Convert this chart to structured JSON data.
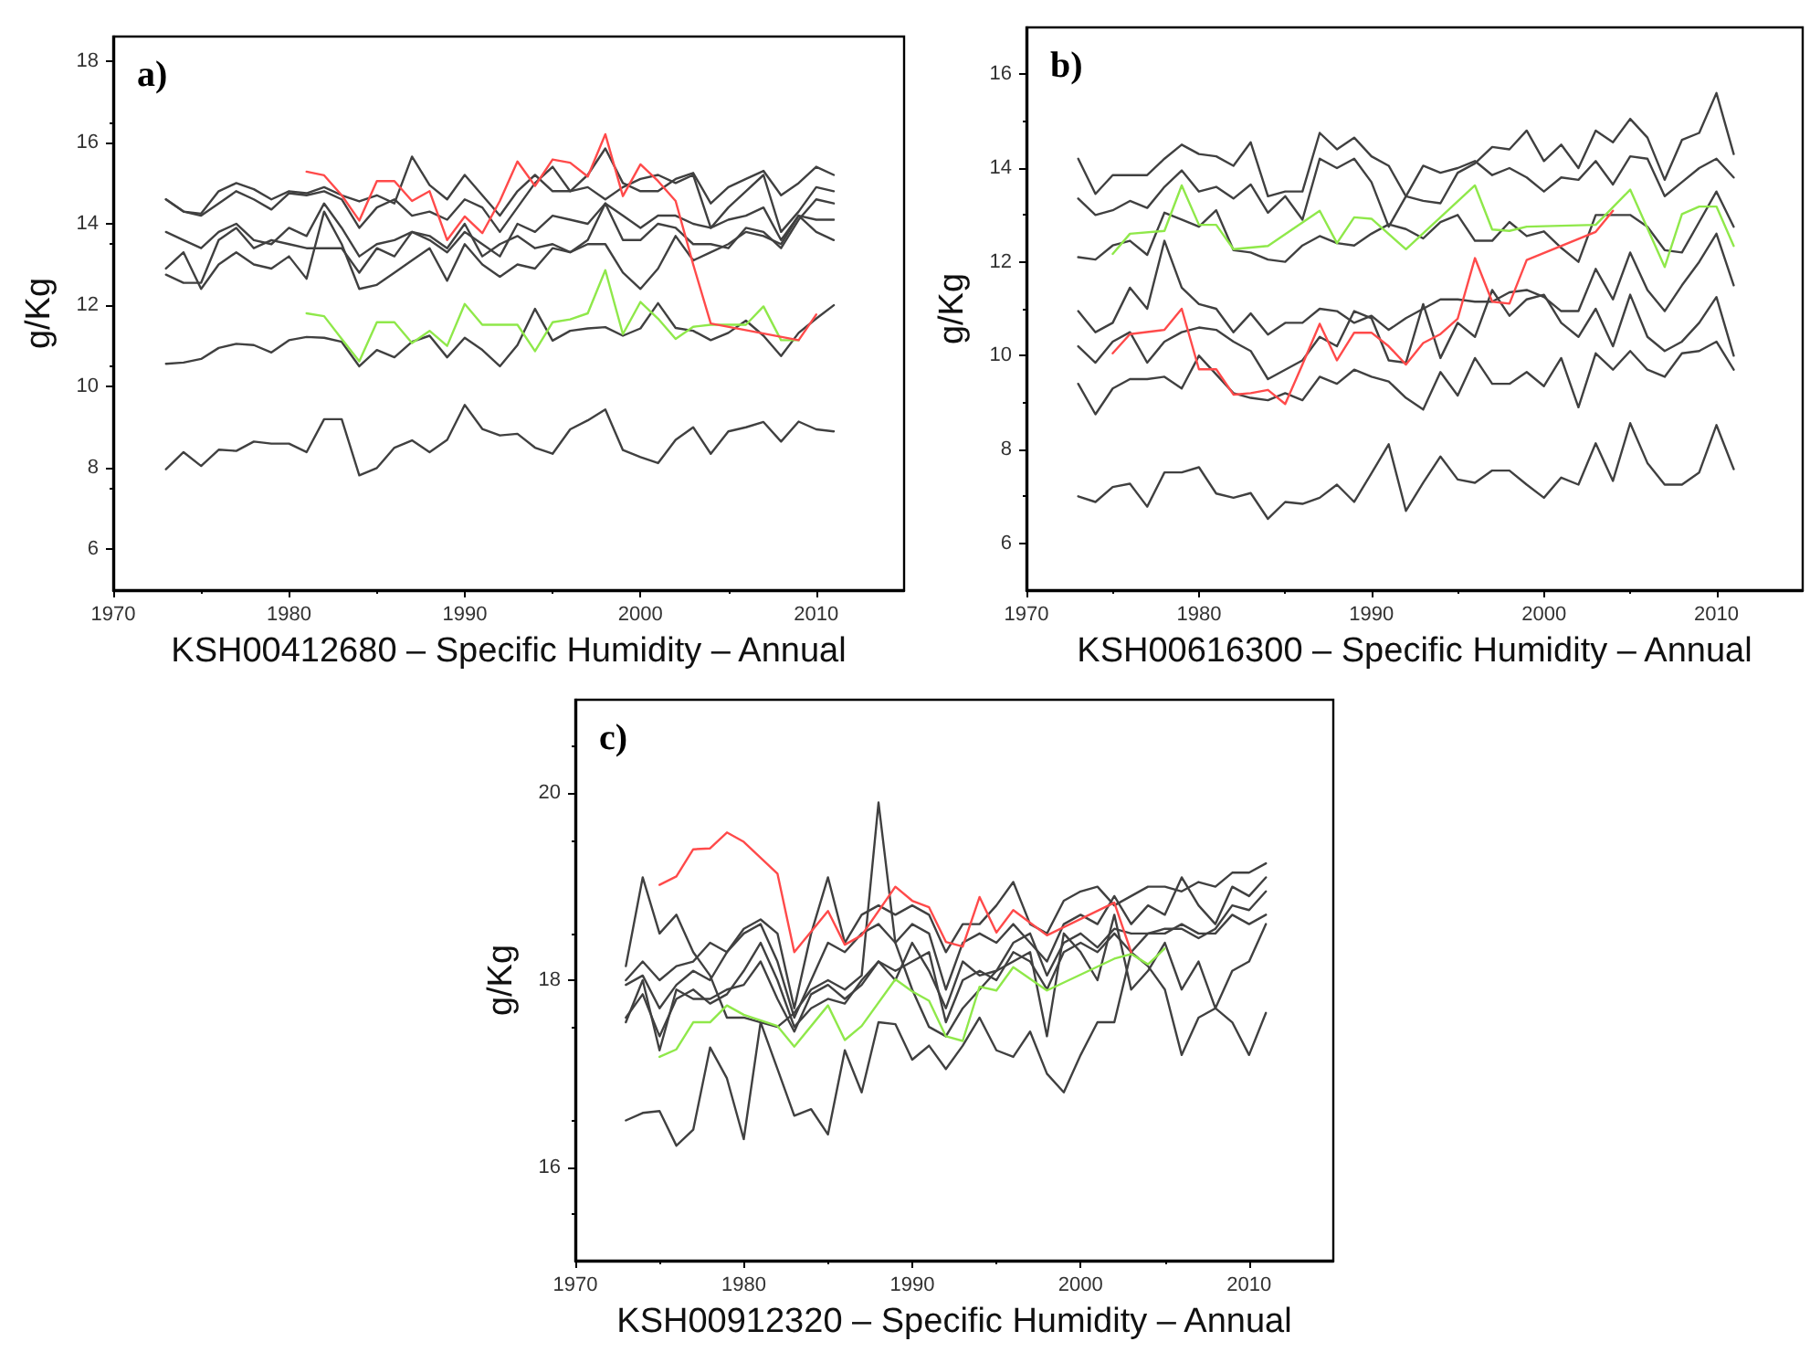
{
  "chart_data": [
    {
      "type": "line",
      "title": "a)",
      "xlabel": "KSH00412680 – Specific Humidity – Annual",
      "ylabel": "g/Kg",
      "xlim": [
        1970,
        2015
      ],
      "xticks": [
        1970,
        1980,
        1990,
        2000,
        2010
      ],
      "ylim": [
        5,
        18.6
      ],
      "yticks": [
        6,
        8,
        10,
        12,
        14,
        16,
        18
      ],
      "grid": false,
      "marker": "none",
      "line_style": "solid",
      "x": [
        1973,
        1974,
        1975,
        1976,
        1977,
        1978,
        1979,
        1980,
        1981,
        1982,
        1983,
        1984,
        1985,
        1986,
        1987,
        1988,
        1989,
        1990,
        1991,
        1992,
        1993,
        1994,
        1995,
        1996,
        1997,
        1998,
        1999,
        2000,
        2001,
        2002,
        2003,
        2004,
        2005,
        2006,
        2007,
        2008,
        2009,
        2010,
        2011
      ],
      "series": [
        {
          "color": "#404040",
          "values": [
            7.97,
            8.39,
            8.05,
            8.45,
            8.42,
            8.65,
            8.6,
            8.6,
            8.39,
            9.2,
            9.2,
            7.82,
            8.0,
            8.5,
            8.68,
            8.39,
            8.69,
            9.55,
            8.96,
            8.8,
            8.84,
            8.5,
            8.35,
            8.95,
            9.17,
            9.44,
            8.44,
            8.27,
            8.12,
            8.69,
            9.0,
            8.35,
            8.9,
            9.0,
            9.13,
            8.65,
            9.14,
            8.95,
            8.9
          ]
        },
        {
          "color": "#404040",
          "values": [
            10.56,
            10.59,
            10.68,
            10.95,
            11.05,
            11.02,
            10.84,
            11.14,
            11.22,
            11.2,
            11.1,
            10.5,
            10.9,
            10.72,
            11.1,
            11.25,
            10.72,
            11.2,
            10.9,
            10.5,
            11.02,
            11.91,
            11.13,
            11.37,
            11.43,
            11.46,
            11.25,
            11.43,
            12.05,
            11.44,
            11.37,
            11.14,
            11.32,
            11.62,
            11.25,
            10.75,
            11.32,
            11.67,
            12.0
          ]
        },
        {
          "color": "#404040",
          "values": [
            14.6,
            14.3,
            14.25,
            14.8,
            15.0,
            14.85,
            14.6,
            14.8,
            14.75,
            14.9,
            14.7,
            14.55,
            14.7,
            14.5,
            15.65,
            14.95,
            14.6,
            15.2,
            14.7,
            14.2,
            14.8,
            15.2,
            14.8,
            14.8,
            15.2,
            15.85,
            15.0,
            14.8,
            14.8,
            15.1,
            15.25,
            14.5,
            14.9,
            15.1,
            15.3,
            14.7,
            15.0,
            15.4,
            15.2
          ]
        },
        {
          "color": "#404040",
          "values": [
            14.6,
            14.3,
            14.2,
            14.5,
            14.8,
            14.6,
            14.35,
            14.75,
            14.7,
            14.8,
            14.6,
            13.9,
            14.4,
            14.6,
            14.2,
            14.3,
            14.1,
            14.6,
            14.4,
            13.8,
            14.4,
            15.0,
            15.4,
            14.8,
            14.9,
            14.6,
            14.9,
            15.1,
            15.2,
            15.0,
            15.2,
            13.9,
            14.4,
            14.8,
            15.2,
            13.8,
            14.3,
            14.9,
            14.8
          ]
        },
        {
          "color": "#404040",
          "values": [
            13.8,
            13.6,
            13.4,
            13.8,
            14.0,
            13.6,
            13.5,
            13.9,
            13.7,
            14.5,
            13.9,
            13.2,
            13.5,
            13.6,
            13.8,
            13.6,
            13.3,
            13.8,
            13.5,
            13.2,
            14.0,
            13.8,
            14.2,
            14.1,
            14.0,
            14.5,
            14.2,
            13.9,
            14.2,
            14.2,
            14.0,
            13.9,
            14.1,
            14.2,
            14.4,
            13.6,
            14.2,
            14.1,
            14.1
          ]
        },
        {
          "color": "#404040",
          "values": [
            12.9,
            13.3,
            12.4,
            13.0,
            13.3,
            13.0,
            12.9,
            13.2,
            12.65,
            14.3,
            13.5,
            12.4,
            12.5,
            12.8,
            13.1,
            13.4,
            12.6,
            13.5,
            13.0,
            12.7,
            13.0,
            12.9,
            13.4,
            13.3,
            13.5,
            13.5,
            12.8,
            12.4,
            12.9,
            13.7,
            13.1,
            13.3,
            13.5,
            13.8,
            13.7,
            13.5,
            14.2,
            13.8,
            13.6
          ]
        },
        {
          "color": "#404040",
          "values": [
            12.75,
            12.55,
            12.55,
            13.6,
            13.9,
            13.4,
            13.6,
            13.5,
            13.4,
            13.4,
            13.4,
            12.8,
            13.4,
            13.2,
            13.8,
            13.7,
            13.4,
            14.0,
            13.2,
            13.5,
            13.7,
            13.4,
            13.5,
            13.3,
            13.6,
            14.5,
            13.6,
            13.6,
            14.0,
            13.9,
            13.5,
            13.5,
            13.4,
            13.9,
            13.8,
            13.4,
            14.1,
            14.6,
            14.5
          ]
        },
        {
          "color": "#8fe84a",
          "values": [
            null,
            null,
            null,
            null,
            null,
            null,
            null,
            null,
            11.8,
            11.73,
            11.17,
            10.62,
            11.58,
            11.58,
            11.07,
            11.37,
            11.0,
            12.03,
            11.52,
            11.52,
            11.52,
            10.87,
            11.58,
            11.65,
            11.8,
            12.86,
            11.29,
            12.08,
            11.67,
            11.17,
            11.47,
            11.52,
            11.52,
            11.52,
            11.97,
            11.14,
            11.14,
            null,
            null
          ]
        },
        {
          "color": "#ff4a4a",
          "values": [
            null,
            null,
            null,
            null,
            null,
            null,
            null,
            null,
            15.28,
            15.19,
            14.7,
            14.08,
            15.05,
            15.05,
            14.56,
            14.8,
            13.6,
            14.18,
            13.77,
            14.56,
            15.53,
            14.93,
            15.58,
            15.5,
            15.16,
            16.2,
            14.68,
            15.46,
            15.05,
            14.56,
            13.0,
            11.55,
            null,
            null,
            null,
            null,
            11.14,
            11.77,
            null
          ]
        }
      ]
    },
    {
      "type": "line",
      "title": "b)",
      "xlabel": "KSH00616300 – Specific Humidity – Annual",
      "ylabel": "g/Kg",
      "xlim": [
        1970,
        2015
      ],
      "xticks": [
        1970,
        1980,
        1990,
        2000,
        2010
      ],
      "ylim": [
        5,
        17
      ],
      "yticks": [
        6,
        8,
        10,
        12,
        14,
        16
      ],
      "grid": false,
      "marker": "none",
      "line_style": "solid",
      "x": [
        1973,
        1974,
        1975,
        1976,
        1977,
        1978,
        1979,
        1980,
        1981,
        1982,
        1983,
        1984,
        1985,
        1986,
        1987,
        1988,
        1989,
        1990,
        1991,
        1992,
        1993,
        1994,
        1995,
        1996,
        1997,
        1998,
        1999,
        2000,
        2001,
        2002,
        2003,
        2004,
        2005,
        2006,
        2007,
        2008,
        2009,
        2010,
        2011
      ],
      "series": [
        {
          "color": "#404040",
          "values": [
            7.0,
            6.88,
            7.2,
            7.27,
            6.78,
            7.51,
            7.51,
            7.62,
            7.06,
            6.97,
            7.07,
            6.52,
            6.88,
            6.84,
            6.97,
            7.25,
            6.88,
            7.49,
            8.11,
            6.69,
            7.29,
            7.85,
            7.36,
            7.29,
            7.55,
            7.55,
            7.25,
            6.97,
            7.4,
            7.25,
            8.13,
            7.33,
            8.56,
            7.71,
            7.25,
            7.25,
            7.51,
            8.52,
            7.58
          ]
        },
        {
          "color": "#404040",
          "values": [
            14.2,
            13.45,
            13.85,
            13.85,
            13.85,
            14.2,
            14.5,
            14.3,
            14.25,
            14.05,
            14.55,
            13.4,
            13.5,
            13.5,
            14.75,
            14.4,
            14.65,
            14.25,
            14.05,
            13.4,
            13.3,
            13.25,
            13.9,
            14.1,
            14.45,
            14.4,
            14.8,
            14.15,
            14.5,
            14.0,
            14.8,
            14.55,
            15.05,
            14.65,
            13.75,
            14.6,
            14.75,
            15.6,
            14.3
          ]
        },
        {
          "color": "#404040",
          "values": [
            13.35,
            13.0,
            13.1,
            13.3,
            13.15,
            13.6,
            13.95,
            13.5,
            13.6,
            13.35,
            13.65,
            13.05,
            13.4,
            12.9,
            14.2,
            14.0,
            14.2,
            13.7,
            12.75,
            13.4,
            14.05,
            13.9,
            14.0,
            14.15,
            13.85,
            14.0,
            13.8,
            13.5,
            13.8,
            13.75,
            14.15,
            13.65,
            14.25,
            14.2,
            13.4,
            13.7,
            14.0,
            14.2,
            13.8
          ]
        },
        {
          "color": "#404040",
          "values": [
            12.1,
            12.05,
            12.35,
            12.45,
            12.15,
            13.05,
            12.9,
            12.75,
            13.1,
            12.25,
            12.2,
            12.05,
            12.0,
            12.35,
            12.55,
            12.4,
            12.35,
            12.6,
            12.8,
            12.7,
            12.5,
            12.85,
            13.0,
            12.45,
            12.45,
            12.85,
            12.55,
            12.65,
            12.3,
            12.0,
            13.0,
            13.0,
            13.0,
            12.75,
            12.25,
            12.2,
            12.85,
            13.5,
            12.75
          ]
        },
        {
          "color": "#404040",
          "values": [
            10.95,
            10.5,
            10.7,
            11.45,
            11.0,
            12.45,
            11.45,
            11.1,
            11.0,
            10.5,
            10.9,
            10.45,
            10.7,
            10.7,
            11.0,
            10.95,
            10.7,
            10.85,
            10.55,
            10.8,
            11.0,
            11.2,
            11.2,
            11.15,
            11.15,
            11.35,
            11.4,
            11.25,
            10.95,
            10.95,
            11.85,
            11.2,
            12.2,
            11.4,
            10.95,
            11.5,
            12.0,
            12.6,
            11.5
          ]
        },
        {
          "color": "#404040",
          "values": [
            10.2,
            9.85,
            10.3,
            10.5,
            9.85,
            10.3,
            10.5,
            10.6,
            10.55,
            10.3,
            10.1,
            9.5,
            9.7,
            9.9,
            10.4,
            10.2,
            10.95,
            10.8,
            9.9,
            9.85,
            11.1,
            9.95,
            10.7,
            10.4,
            11.4,
            10.85,
            11.2,
            11.3,
            10.7,
            10.4,
            11.0,
            10.2,
            11.3,
            10.4,
            10.1,
            10.3,
            10.7,
            11.25,
            10.0
          ]
        },
        {
          "color": "#404040",
          "values": [
            9.4,
            8.75,
            9.3,
            9.5,
            9.5,
            9.55,
            9.3,
            10.0,
            9.6,
            9.2,
            9.1,
            9.05,
            9.2,
            9.05,
            9.55,
            9.4,
            9.7,
            9.55,
            9.45,
            9.1,
            8.85,
            9.65,
            9.15,
            9.95,
            9.4,
            9.4,
            9.65,
            9.35,
            9.95,
            8.9,
            10.05,
            9.7,
            10.1,
            9.7,
            9.55,
            10.05,
            10.1,
            10.3,
            9.7
          ]
        },
        {
          "color": "#8fe84a",
          "values": [
            null,
            null,
            12.17,
            12.6,
            null,
            12.66,
            13.63,
            12.79,
            12.79,
            12.27,
            null,
            12.34,
            null,
            null,
            13.09,
            12.4,
            12.95,
            12.92,
            null,
            12.27,
            null,
            null,
            null,
            13.63,
            12.69,
            12.66,
            12.75,
            null,
            null,
            null,
            12.79,
            null,
            13.54,
            null,
            11.89,
            13.02,
            13.18,
            13.18,
            12.34
          ]
        },
        {
          "color": "#ff4a4a",
          "values": [
            null,
            null,
            10.05,
            10.46,
            null,
            10.55,
            11.0,
            9.71,
            9.71,
            9.17,
            9.2,
            9.27,
            8.97,
            9.81,
            10.68,
            9.9,
            10.49,
            10.49,
            10.2,
            9.81,
            10.27,
            10.46,
            10.79,
            12.08,
            11.15,
            11.11,
            12.04,
            null,
            null,
            null,
            12.64,
            13.09,
            null,
            null,
            null,
            null,
            null,
            null,
            null
          ]
        }
      ]
    },
    {
      "type": "line",
      "title": "c)",
      "xlabel": "KSH00912320 – Specific Humidity – Annual",
      "ylabel": "g/Kg",
      "xlim": [
        1970,
        2015
      ],
      "xticks": [
        1970,
        1980,
        1990,
        2000,
        2010
      ],
      "ylim": [
        15,
        21
      ],
      "yticks": [
        16,
        18,
        20
      ],
      "grid": false,
      "marker": "none",
      "line_style": "solid",
      "x": [
        1973,
        1974,
        1975,
        1976,
        1977,
        1978,
        1979,
        1980,
        1981,
        1982,
        1983,
        1984,
        1985,
        1986,
        1987,
        1988,
        1989,
        1990,
        1991,
        1992,
        1993,
        1994,
        1995,
        1996,
        1997,
        1998,
        1999,
        2000,
        2001,
        2002,
        2003,
        2004,
        2005,
        2006,
        2007,
        2008,
        2009,
        2010,
        2011
      ],
      "series": [
        {
          "color": "#404040",
          "values": [
            16.5,
            16.58,
            16.6,
            16.23,
            16.4,
            17.28,
            16.95,
            16.3,
            17.55,
            17.05,
            16.55,
            16.62,
            16.35,
            17.25,
            16.8,
            17.55,
            17.53,
            17.15,
            17.3,
            17.05,
            17.3,
            17.6,
            17.25,
            17.18,
            17.45,
            17.0,
            16.8,
            17.2,
            17.55,
            17.55,
            18.3,
            18.15,
            17.9,
            17.2,
            17.6,
            17.7,
            17.55,
            17.2,
            17.65
          ]
        },
        {
          "color": "#404040",
          "values": [
            18.15,
            19.1,
            18.5,
            18.7,
            18.3,
            18.05,
            17.6,
            17.6,
            17.55,
            17.5,
            17.65,
            17.9,
            18.0,
            17.9,
            18.05,
            19.9,
            18.4,
            17.9,
            17.5,
            17.4,
            17.7,
            17.9,
            18.1,
            18.2,
            18.3,
            17.4,
            18.5,
            18.3,
            18.0,
            18.7,
            17.9,
            18.1,
            18.4,
            17.9,
            18.2,
            17.7,
            18.1,
            18.2,
            18.6
          ]
        },
        {
          "color": "#404040",
          "values": [
            18.0,
            18.2,
            18.0,
            18.15,
            18.2,
            18.4,
            18.3,
            18.55,
            18.65,
            18.5,
            17.7,
            18.5,
            19.1,
            18.4,
            18.7,
            18.8,
            18.7,
            18.8,
            18.7,
            18.3,
            18.6,
            18.6,
            18.8,
            19.05,
            18.6,
            18.5,
            18.85,
            18.95,
            19.0,
            18.8,
            18.9,
            19.0,
            19.0,
            18.95,
            19.05,
            19.0,
            19.15,
            19.15,
            19.25
          ]
        },
        {
          "color": "#404040",
          "values": [
            17.95,
            18.05,
            17.7,
            17.95,
            18.1,
            18.0,
            18.3,
            18.5,
            18.6,
            18.2,
            17.6,
            18.0,
            18.4,
            18.3,
            18.5,
            18.6,
            18.4,
            18.6,
            18.5,
            17.9,
            18.4,
            18.5,
            18.4,
            18.6,
            18.4,
            18.2,
            18.6,
            18.7,
            18.6,
            18.9,
            18.6,
            18.8,
            18.7,
            19.1,
            18.8,
            18.6,
            19.0,
            18.9,
            19.1
          ]
        },
        {
          "color": "#404040",
          "values": [
            17.6,
            17.85,
            17.4,
            17.8,
            17.9,
            17.75,
            17.85,
            18.1,
            18.4,
            18.0,
            17.5,
            17.7,
            17.8,
            17.75,
            18.0,
            18.2,
            18.1,
            18.2,
            18.3,
            17.55,
            18.0,
            18.1,
            18.0,
            18.3,
            18.2,
            17.9,
            18.3,
            18.4,
            18.3,
            18.5,
            18.3,
            18.5,
            18.5,
            18.6,
            18.5,
            18.5,
            18.7,
            18.6,
            18.7
          ]
        },
        {
          "color": "#404040",
          "values": [
            17.55,
            18.0,
            17.25,
            17.9,
            17.8,
            17.8,
            17.9,
            17.95,
            18.2,
            17.8,
            17.45,
            17.85,
            17.95,
            17.8,
            17.95,
            18.2,
            18.0,
            18.4,
            18.1,
            17.7,
            18.2,
            18.05,
            18.1,
            18.4,
            18.5,
            18.05,
            18.4,
            18.5,
            18.35,
            18.55,
            18.5,
            18.5,
            18.55,
            18.55,
            18.45,
            18.55,
            18.8,
            18.75,
            18.95
          ]
        },
        {
          "color": "#8fe84a",
          "values": [
            null,
            null,
            17.18,
            17.26,
            17.55,
            17.55,
            17.73,
            17.63,
            null,
            17.51,
            17.29,
            null,
            17.73,
            17.36,
            17.51,
            null,
            18.01,
            17.88,
            17.78,
            17.4,
            17.35,
            17.93,
            17.89,
            18.14,
            null,
            17.89,
            null,
            null,
            null,
            18.23,
            18.28,
            18.17,
            18.34,
            null,
            null,
            null,
            null,
            null,
            null
          ]
        },
        {
          "color": "#ff4a4a",
          "values": [
            null,
            null,
            19.02,
            19.11,
            19.4,
            19.41,
            19.58,
            19.48,
            null,
            19.14,
            18.3,
            null,
            18.74,
            18.38,
            18.48,
            null,
            19.0,
            18.85,
            18.78,
            18.41,
            18.36,
            18.89,
            18.51,
            18.75,
            null,
            18.48,
            null,
            null,
            null,
            18.83,
            18.3,
            null,
            null,
            null,
            null,
            null,
            null,
            null,
            null
          ]
        }
      ]
    }
  ]
}
